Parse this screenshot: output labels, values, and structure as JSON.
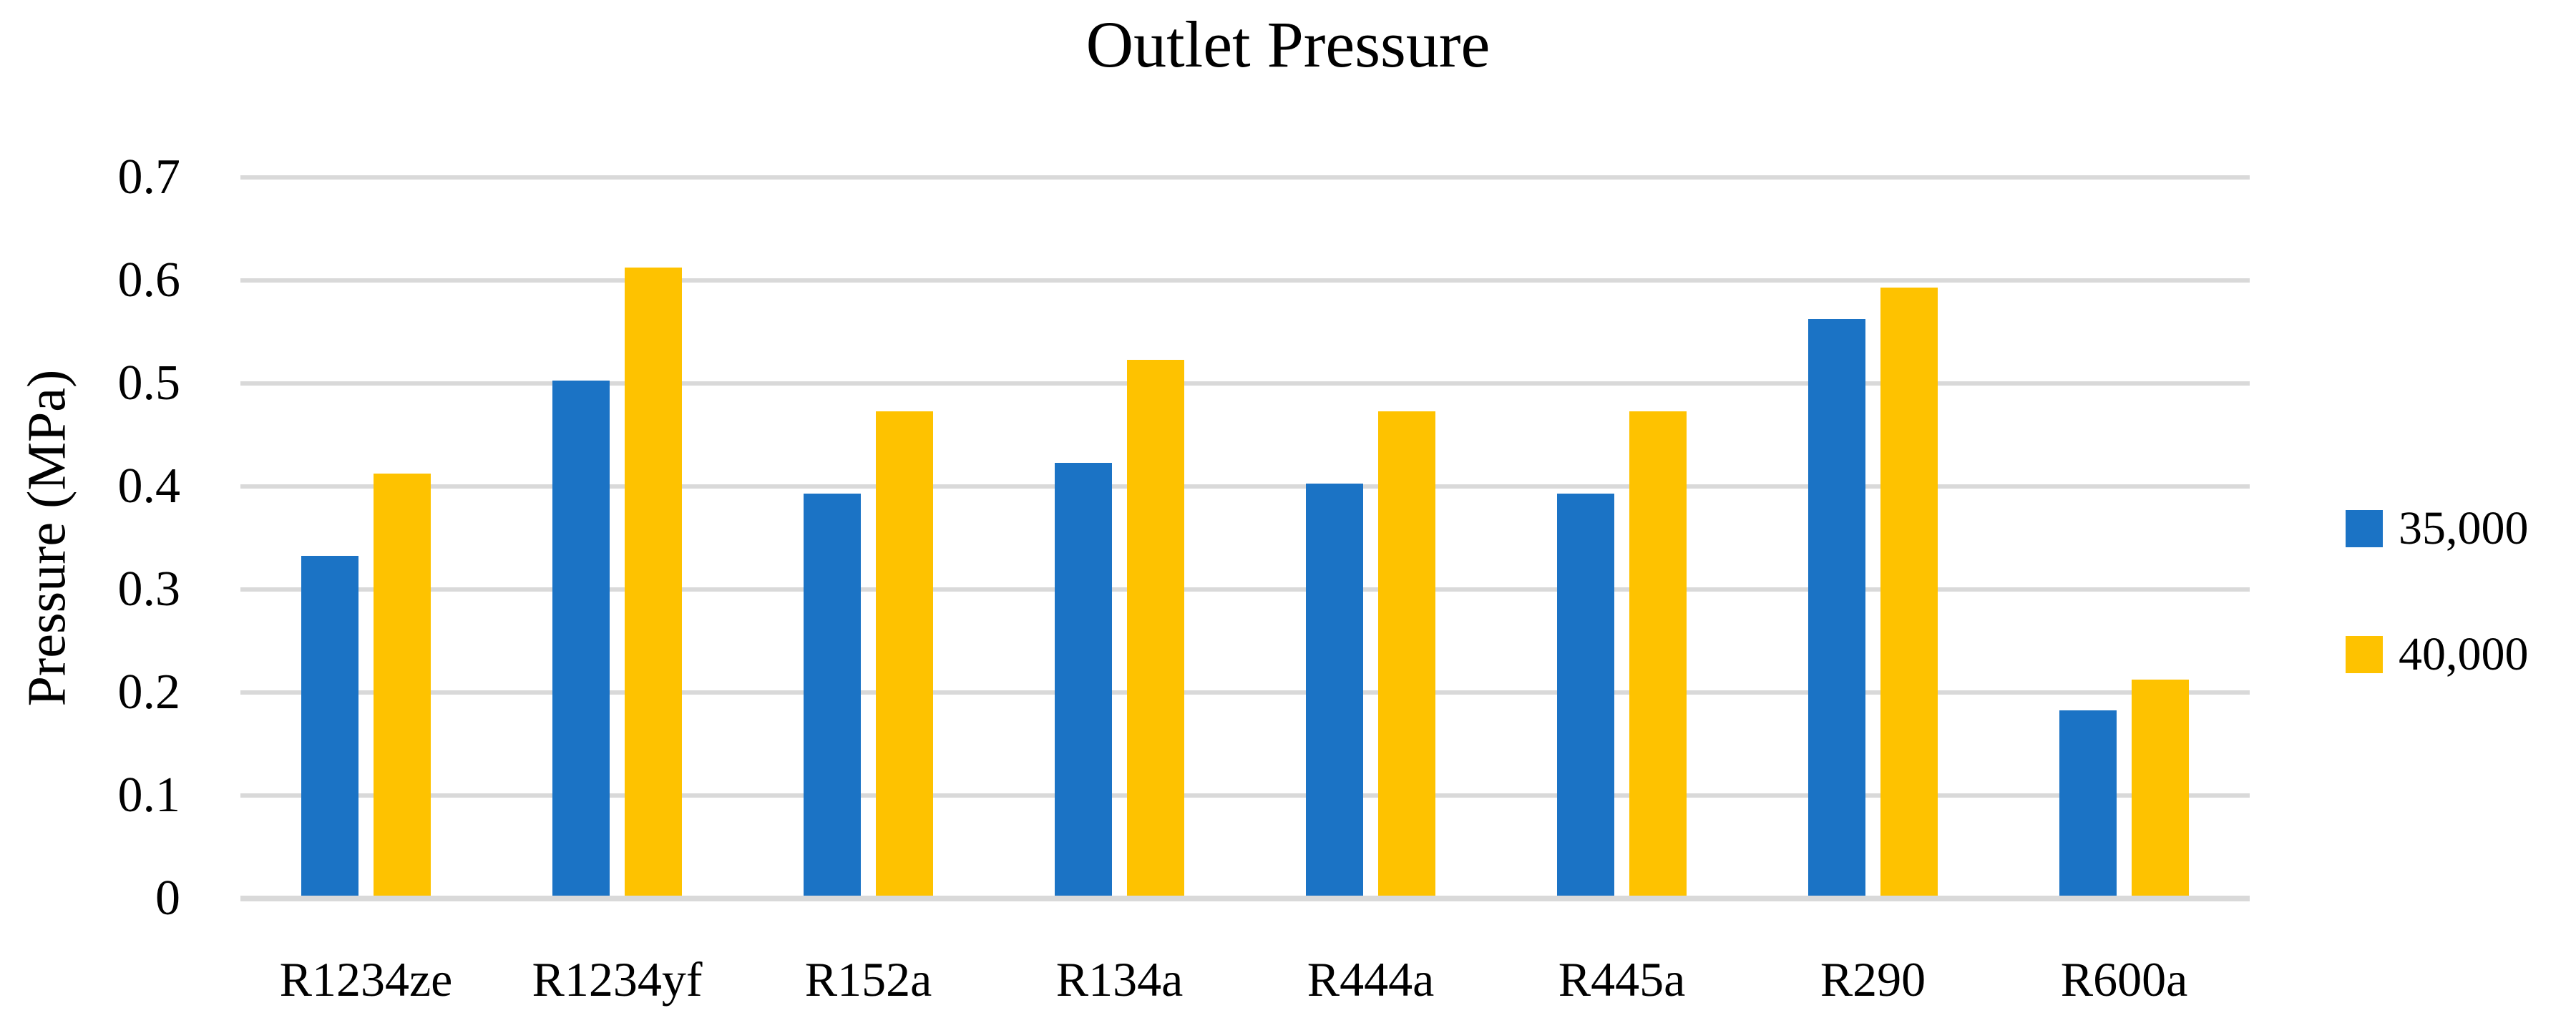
{
  "chart_data": {
    "type": "bar",
    "title": "Outlet Pressure",
    "xlabel": "",
    "ylabel": "Pressure (MPa)",
    "categories": [
      "R1234ze",
      "R1234yf",
      "R152a",
      "R134a",
      "R444a",
      "R445a",
      "R290",
      "R600a"
    ],
    "series": [
      {
        "name": "35,000",
        "color": "#1B73C5",
        "values": [
          0.33,
          0.5,
          0.39,
          0.42,
          0.4,
          0.39,
          0.56,
          0.18
        ]
      },
      {
        "name": "40,000",
        "color": "#FEC200",
        "values": [
          0.41,
          0.61,
          0.47,
          0.52,
          0.47,
          0.47,
          0.59,
          0.21
        ]
      }
    ],
    "ylim": [
      0,
      0.7
    ],
    "ytick_step": 0.1,
    "ytick_labels": [
      "0",
      "0.1",
      "0.2",
      "0.3",
      "0.4",
      "0.5",
      "0.6",
      "0.7"
    ],
    "grid": "horizontal-only",
    "gridline_color": "#D9D9D9",
    "axis_line_color": "#D9D9D9",
    "legend_position": "right",
    "background": "#FFFFFF",
    "text_color": "#000000"
  }
}
